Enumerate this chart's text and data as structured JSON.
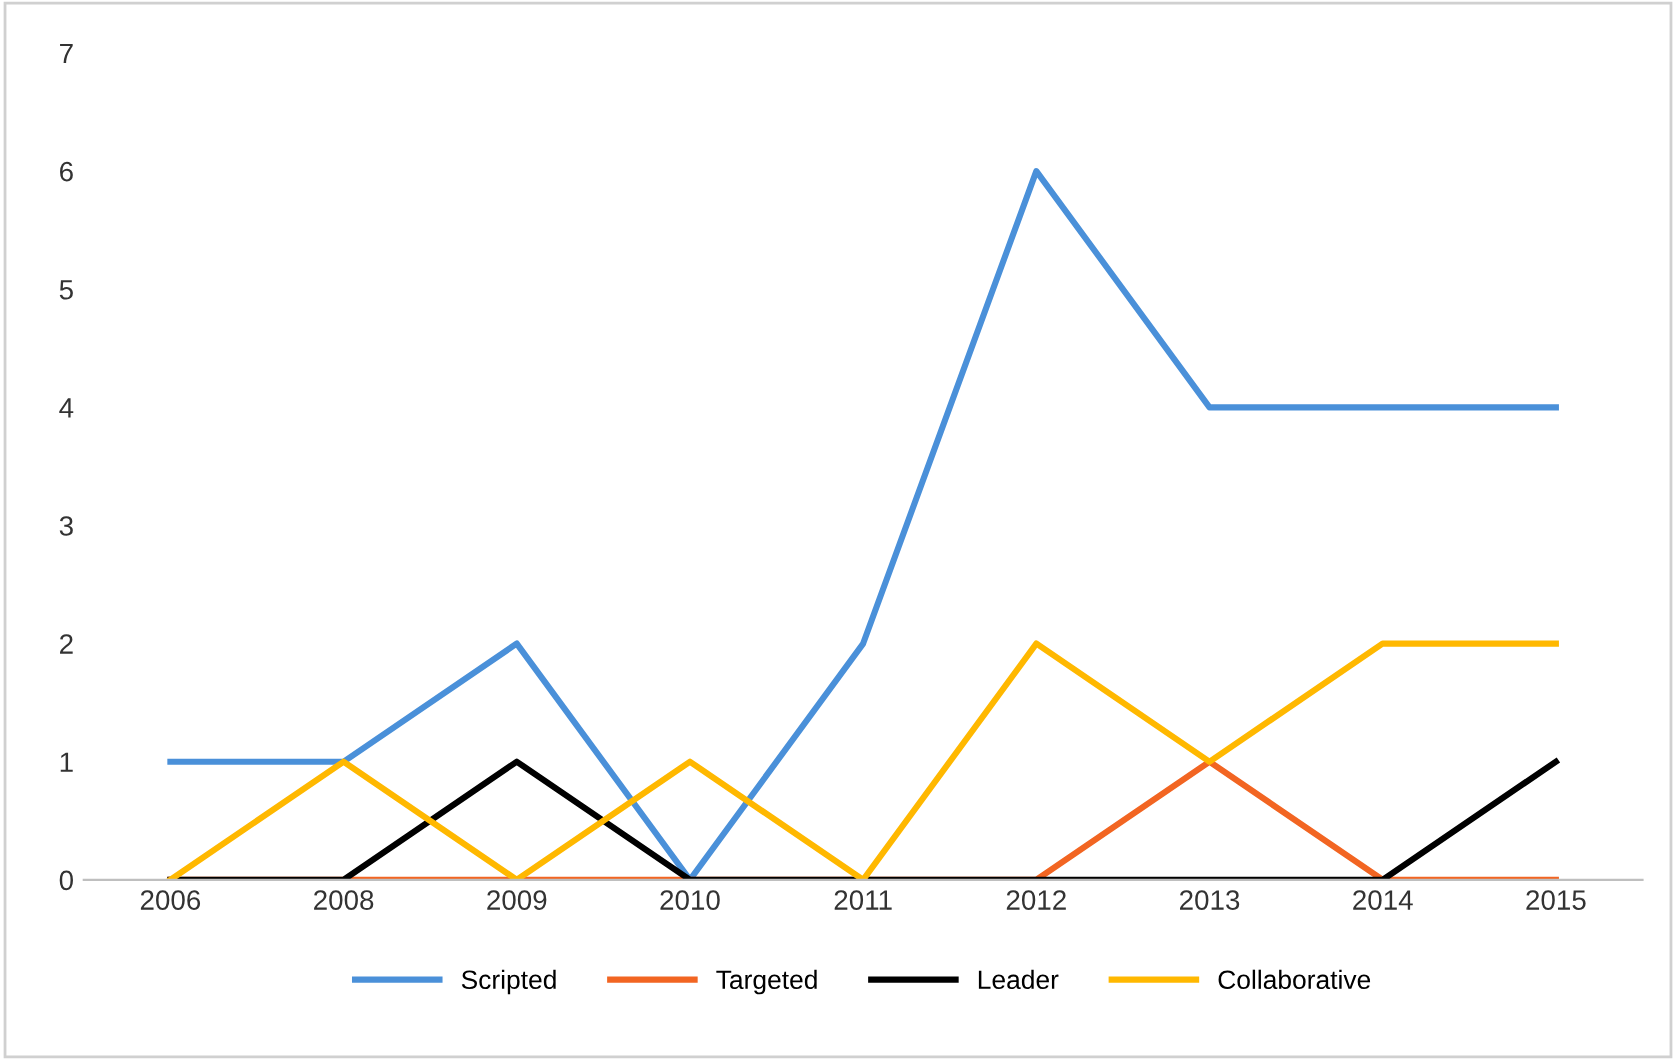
{
  "chart_data": {
    "type": "line",
    "categories": [
      "2006",
      "2008",
      "2009",
      "2010",
      "2011",
      "2012",
      "2013",
      "2014",
      "2015"
    ],
    "series": [
      {
        "name": "Scripted",
        "color": "#4a90d9",
        "values": [
          1,
          1,
          2,
          0,
          2,
          6,
          4,
          4,
          4
        ]
      },
      {
        "name": "Targeted",
        "color": "#f26522",
        "values": [
          0,
          0,
          0,
          0,
          0,
          0,
          1,
          0,
          0
        ]
      },
      {
        "name": "Leader",
        "color": "#000000",
        "values": [
          0,
          0,
          1,
          0,
          0,
          0,
          0,
          0,
          1
        ]
      },
      {
        "name": "Collaborative",
        "color": "#ffb800",
        "values": [
          0,
          1,
          0,
          1,
          0,
          2,
          1,
          2,
          2
        ]
      }
    ],
    "ylim": [
      0,
      7
    ],
    "yticks": [
      0,
      1,
      2,
      3,
      4,
      5,
      6,
      7
    ],
    "grid": false,
    "legend": "bottom",
    "marker": "none",
    "line_style": "solid"
  }
}
